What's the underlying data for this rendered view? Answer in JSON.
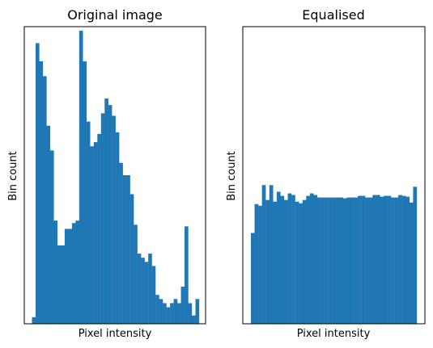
{
  "chart_data": [
    {
      "type": "bar",
      "title": "Original image",
      "xlabel": "Pixel intensity",
      "ylabel": "Bin count",
      "xticks": false,
      "yticks": false,
      "ylim": [
        0,
        360
      ],
      "color": "#1f77b4",
      "values": [
        8,
        340,
        318,
        300,
        240,
        210,
        125,
        95,
        95,
        115,
        115,
        122,
        125,
        355,
        318,
        245,
        215,
        220,
        230,
        255,
        273,
        265,
        252,
        232,
        195,
        180,
        180,
        157,
        120,
        85,
        80,
        75,
        85,
        70,
        35,
        30,
        25,
        20,
        25,
        30,
        25,
        45,
        118,
        25,
        10,
        30
      ]
    },
    {
      "type": "bar",
      "title": "Equalised",
      "xlabel": "Pixel intensity",
      "ylabel": "Bin count",
      "xticks": false,
      "yticks": false,
      "ylim": [
        0,
        360
      ],
      "color": "#1f77b4",
      "values": [
        110,
        145,
        143,
        168,
        150,
        168,
        148,
        160,
        155,
        150,
        158,
        156,
        148,
        146,
        150,
        155,
        158,
        156,
        153,
        153,
        153,
        153,
        153,
        153,
        153,
        152,
        153,
        153,
        153,
        155,
        155,
        153,
        153,
        156,
        156,
        154,
        155,
        155,
        153,
        153,
        156,
        155,
        154,
        147,
        166
      ]
    }
  ]
}
